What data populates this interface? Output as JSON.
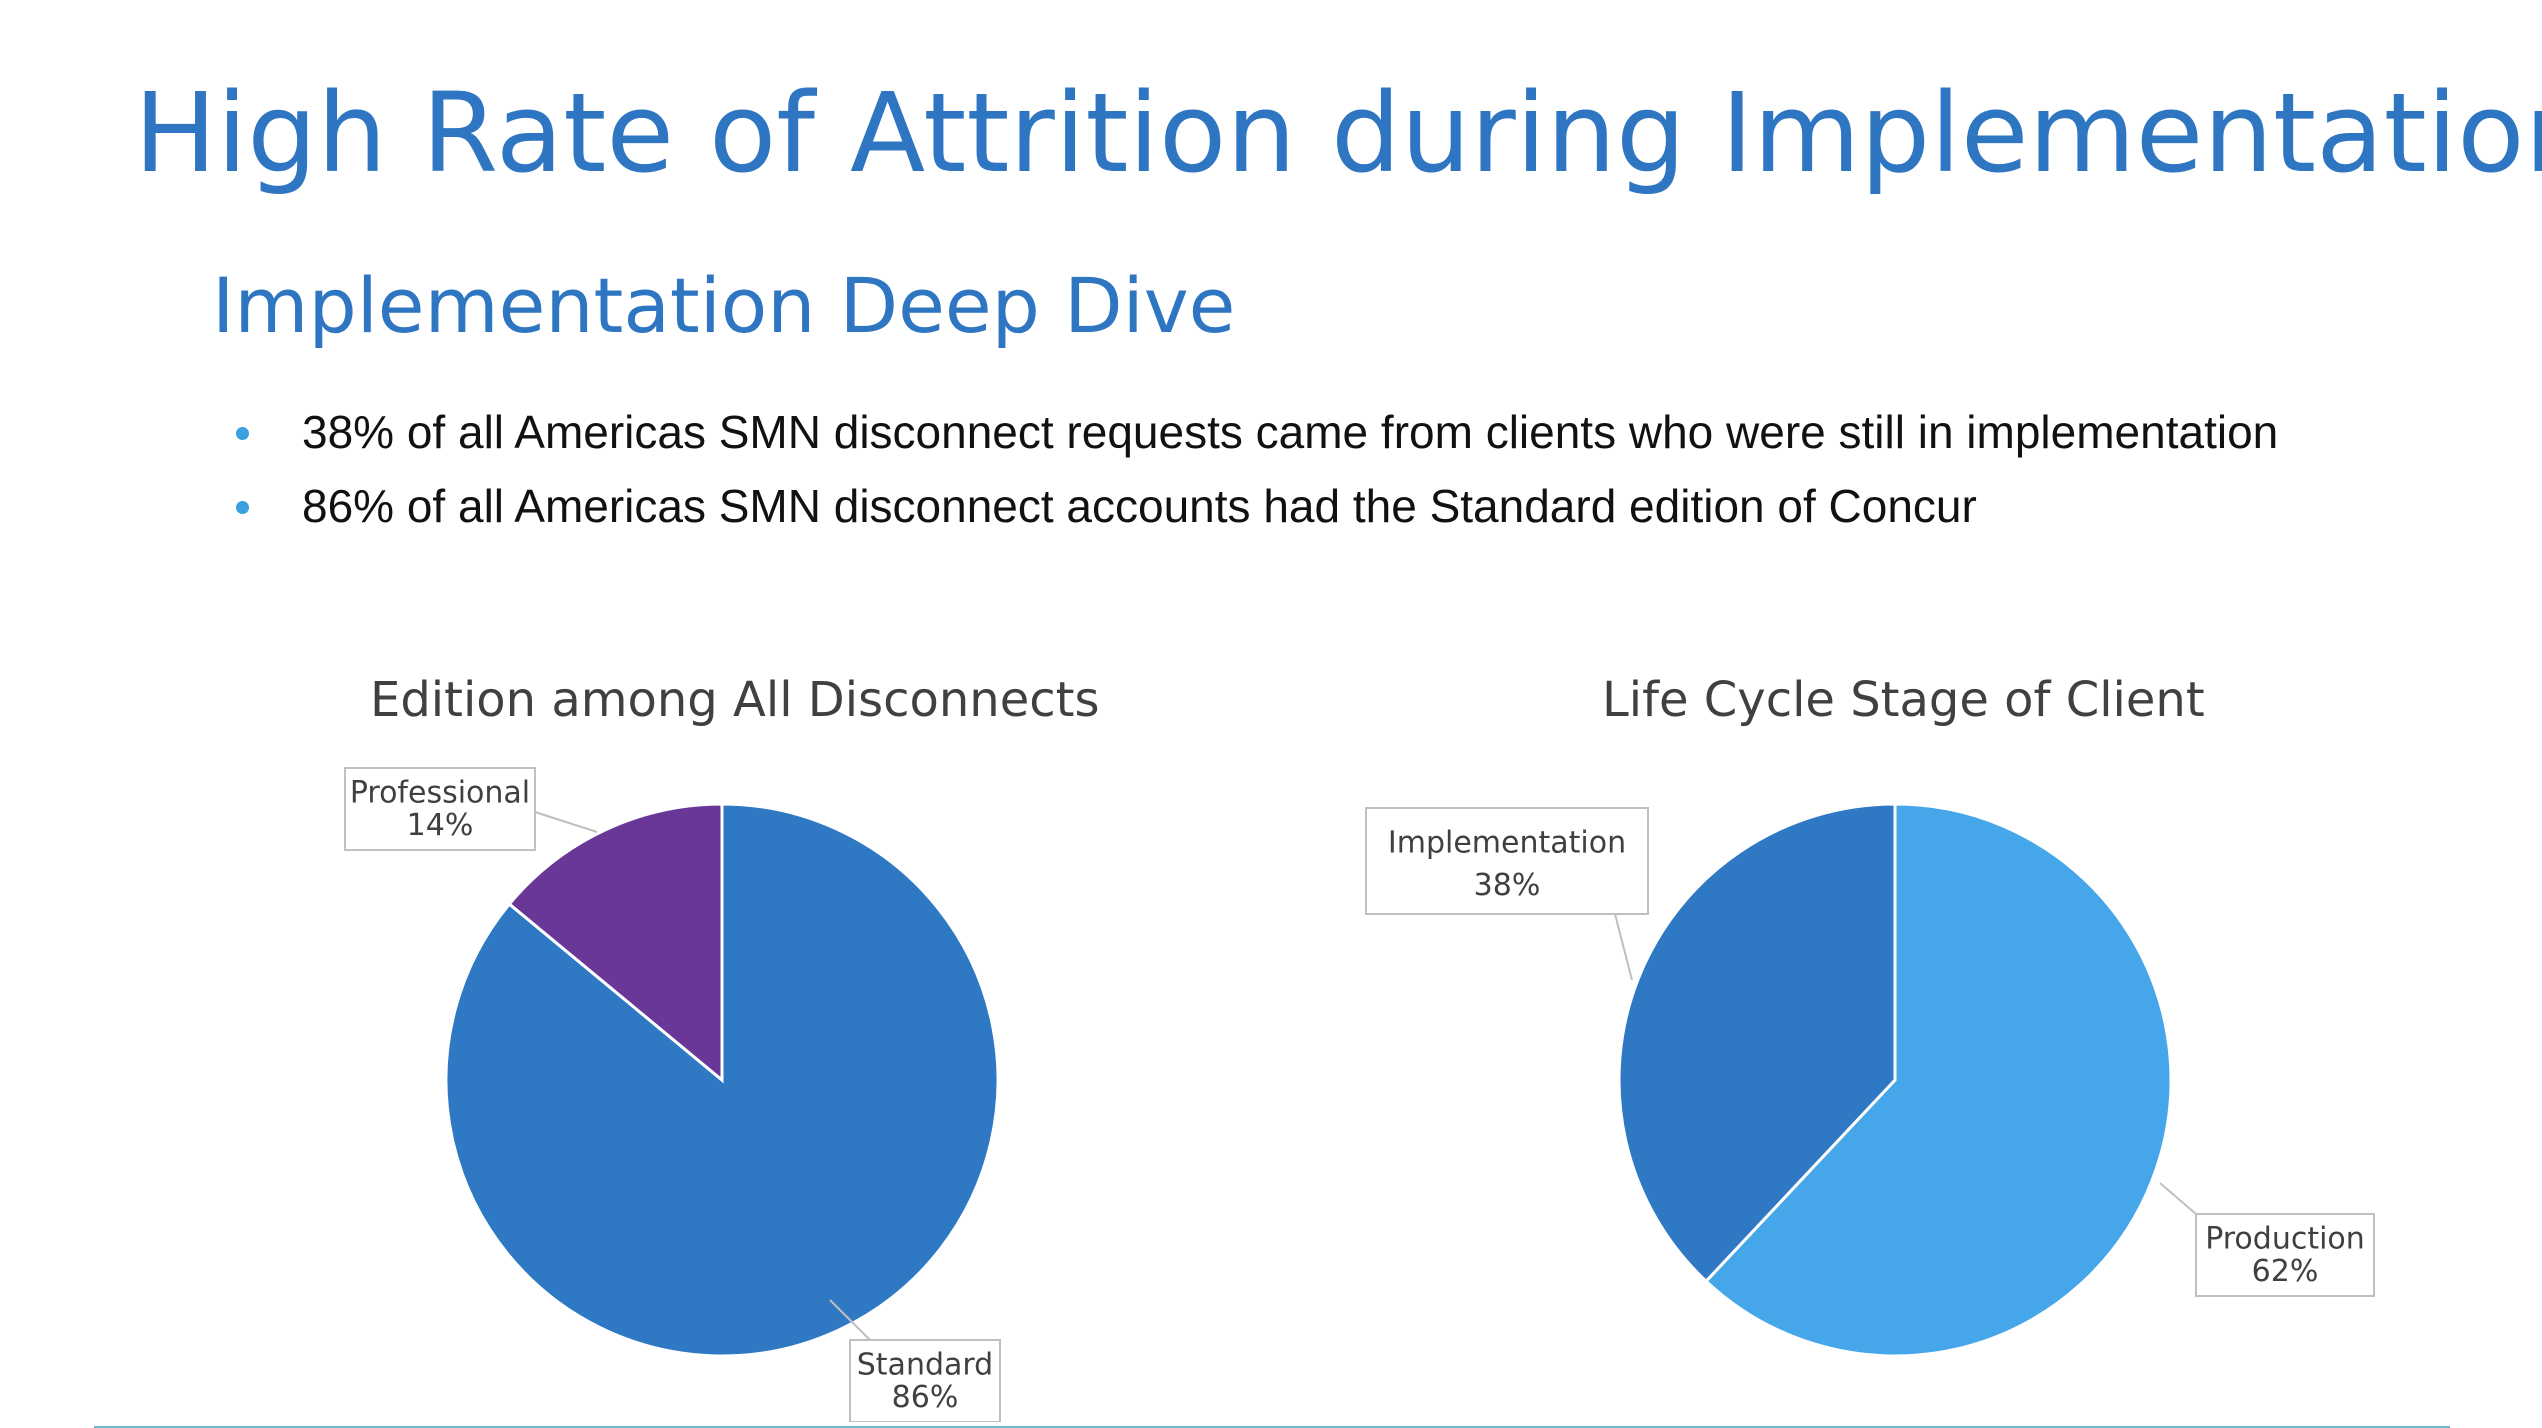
{
  "slide": {
    "title": "High Rate of Attrition during Implementation",
    "subtitle": "Implementation Deep Dive",
    "bullets": [
      "38% of all Americas SMN disconnect requests came from clients who were still in implementation",
      "86% of all Americas SMN disconnect accounts had the Standard edition of Concur"
    ]
  },
  "colors": {
    "title": "#2E75C2",
    "bullet": "#3AA0E0",
    "standard": "#2E78C4",
    "professional": "#693797",
    "implementation": "#2E78C4",
    "production": "#46A6EA"
  },
  "chart_data": [
    {
      "type": "pie",
      "title": "Edition among All Disconnects",
      "slices": [
        {
          "label": "Standard",
          "value": 86,
          "display": "86%"
        },
        {
          "label": "Professional",
          "value": 14,
          "display": "14%"
        }
      ],
      "legend": "none",
      "data_labels": "callout"
    },
    {
      "type": "pie",
      "title": "Life Cycle Stage of Client",
      "slices": [
        {
          "label": "Production",
          "value": 62,
          "display": "62%"
        },
        {
          "label": "Implementation",
          "value": 38,
          "display": "38%"
        }
      ],
      "legend": "none",
      "data_labels": "callout"
    }
  ]
}
